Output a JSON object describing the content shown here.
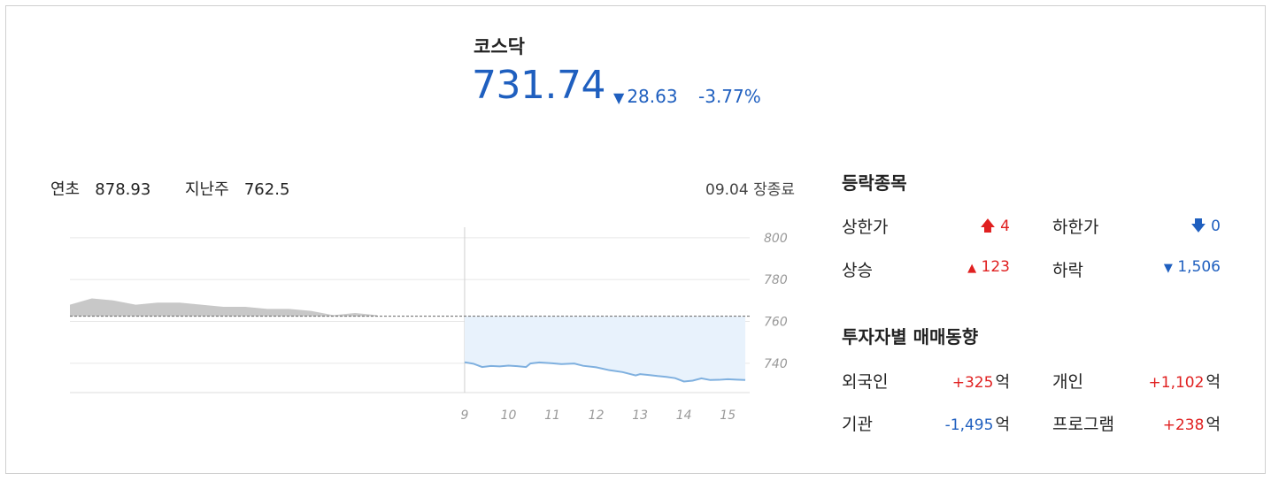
{
  "index": {
    "name": "코스닥",
    "value": "731.74",
    "change": "28.63",
    "change_rate": "-3.77%",
    "direction_icon": "down-triangle-icon"
  },
  "reference": {
    "ytd_label": "연초",
    "ytd_value": "878.93",
    "lastweek_label": "지난주",
    "lastweek_value": "762.5",
    "status": "09.04 장종료"
  },
  "advance_decline": {
    "title": "등락종목",
    "items": [
      {
        "label": "상한가",
        "value": "4",
        "icon": "up-arrow-icon"
      },
      {
        "label": "하한가",
        "value": "0",
        "icon": "down-arrow-icon"
      },
      {
        "label": "상승",
        "value": "123",
        "icon": "up-triangle-icon"
      },
      {
        "label": "하락",
        "value": "1,506",
        "icon": "down-triangle-icon"
      }
    ]
  },
  "investor_trend": {
    "title": "투자자별 매매동향",
    "unit": "억",
    "items": [
      {
        "label": "외국인",
        "value": "+325"
      },
      {
        "label": "개인",
        "value": "+1,102"
      },
      {
        "label": "기관",
        "value": "-1,495"
      },
      {
        "label": "프로그램",
        "value": "+238"
      }
    ]
  },
  "colors": {
    "rise": "#e02020",
    "fall": "#1f5fbf",
    "prev_area": "#c8c8c8",
    "today_line": "#7fb0df",
    "today_area": "#e8f2fc"
  },
  "chart_data": {
    "type": "area",
    "title": "",
    "xlabel": "",
    "ylabel": "",
    "ylim": [
      726,
      805
    ],
    "yticks": [
      "800",
      "780",
      "760",
      "740"
    ],
    "xticks": [
      "9",
      "10",
      "11",
      "12",
      "13",
      "14",
      "15"
    ],
    "reference_value": 762.5,
    "grid": true,
    "series": [
      {
        "name": "",
        "x": [
          0,
          0.5,
          1,
          1.5,
          2,
          2.5,
          3,
          3.5,
          4,
          4.5,
          5,
          5.5,
          6,
          6.5,
          7
        ],
        "values": [
          768,
          771,
          770,
          768,
          769,
          769,
          768,
          767,
          767,
          766,
          766,
          765,
          763,
          764,
          763
        ]
      },
      {
        "name": "",
        "x": [
          9,
          9.2,
          9.4,
          9.6,
          9.8,
          10.0,
          10.2,
          10.4,
          10.5,
          10.7,
          11.0,
          11.2,
          11.5,
          11.7,
          12.0,
          12.3,
          12.6,
          12.9,
          13.0,
          13.2,
          13.4,
          13.6,
          13.8,
          14.0,
          14.2,
          14.4,
          14.6,
          14.8,
          15.0,
          15.2,
          15.4
        ],
        "values": [
          740.5,
          739.8,
          738.2,
          738.7,
          738.5,
          738.9,
          738.6,
          738.2,
          739.9,
          740.4,
          740.0,
          739.6,
          739.9,
          738.8,
          738.1,
          736.7,
          735.8,
          734.2,
          734.8,
          734.4,
          733.9,
          733.5,
          732.9,
          731.3,
          731.7,
          732.8,
          732.0,
          732.1,
          732.4,
          732.2,
          732.0
        ]
      }
    ]
  }
}
